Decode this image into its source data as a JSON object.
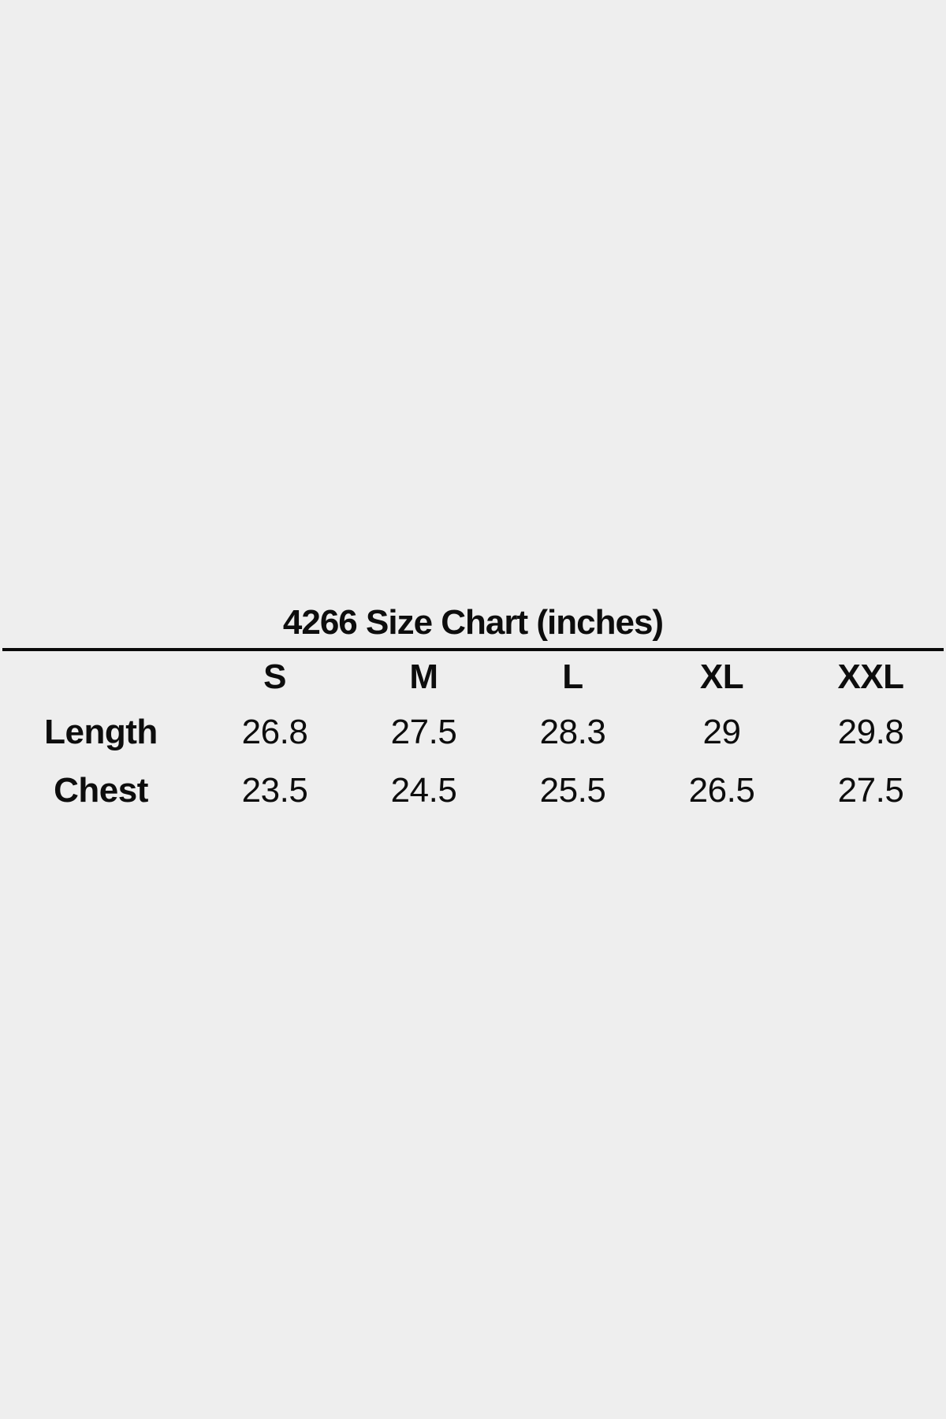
{
  "page": {
    "background_color": "#eeeeee",
    "text_color": "#0d0d0d",
    "rule_color": "#0a0a0a"
  },
  "chart_data": {
    "type": "table",
    "title": "4266 Size Chart (inches)",
    "units": "inches",
    "columns": [
      "S",
      "M",
      "L",
      "XL",
      "XXL"
    ],
    "rows": [
      {
        "label": "Length",
        "values": [
          26.8,
          27.5,
          28.3,
          29,
          29.8
        ]
      },
      {
        "label": "Chest",
        "values": [
          23.5,
          24.5,
          25.5,
          26.5,
          27.5
        ]
      }
    ]
  }
}
